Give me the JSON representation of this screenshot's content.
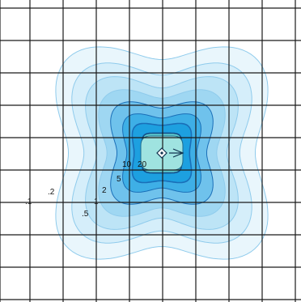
{
  "chart_data": {
    "type": "contour",
    "grid": true,
    "title": "",
    "xlabel": "",
    "ylabel": "",
    "levels": [
      0.1,
      0.2,
      0.5,
      1,
      2,
      5,
      10,
      20
    ],
    "contour_labels": [
      ".1",
      ".2",
      ".5",
      "1",
      "2",
      "5",
      "10",
      "20"
    ],
    "fill_colors": [
      "#e9f6fc",
      "#d5eefa",
      "#bde4f6",
      "#9fd7f2",
      "#6fc2ec",
      "#3eafe6",
      "#1da0e0",
      "#5cc8cc"
    ],
    "line_colors": {
      "outer": "#8fcbec",
      "inner": "#1a6fb8",
      "core": "#134f8a"
    },
    "source_marker": "diamond",
    "direction_marker": "arrow"
  }
}
